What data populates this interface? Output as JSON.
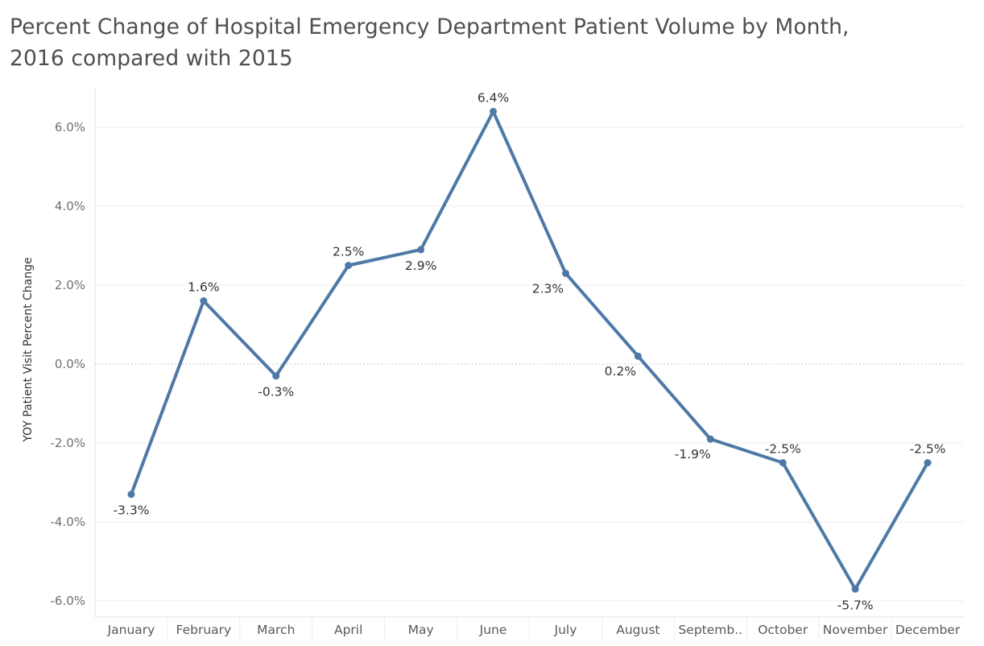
{
  "title_lines": [
    "Percent Change of Hospital Emergency Department Patient Volume by Month,",
    "2016 compared with 2015"
  ],
  "chart_data": {
    "type": "line",
    "title": "Percent Change of Hospital Emergency Department Patient Volume by Month, 2016 compared with 2015",
    "xlabel": "",
    "ylabel": "YOY Patient Visit Percent Change",
    "categories": [
      "January",
      "February",
      "March",
      "April",
      "May",
      "June",
      "July",
      "August",
      "Septemb..",
      "October",
      "November",
      "December"
    ],
    "series": [
      {
        "values": [
          -3.3,
          1.6,
          -0.3,
          2.5,
          2.9,
          6.4,
          2.3,
          0.2,
          -1.9,
          -2.5,
          -5.7,
          -2.5
        ],
        "labels": [
          "-3.3%",
          "1.6%",
          "-0.3%",
          "2.5%",
          "2.9%",
          "6.4%",
          "2.3%",
          "0.2%",
          "-1.9%",
          "-2.5%",
          "-5.7%",
          "-2.5%"
        ]
      }
    ],
    "label_placement": [
      "below",
      "above",
      "below",
      "above",
      "below",
      "above",
      "below-left",
      "below-left",
      "below-left",
      "above",
      "below",
      "above"
    ],
    "yticks": [
      6,
      4,
      2,
      0,
      -2,
      -4,
      -6
    ],
    "ytick_labels": [
      "6.0%",
      "4.0%",
      "2.0%",
      "0.0%",
      "-2.0%",
      "-4.0%",
      "-6.0%"
    ],
    "ylim": [
      -6.4,
      7.0
    ],
    "grid": true,
    "zero_line": "dotted",
    "legend": "none",
    "colors": {
      "line": "#4e79a7",
      "gridline": "#ececec",
      "zero_line": "#b5b5b5",
      "axis_text": "#6f6f6f",
      "label_text": "#333333",
      "title_text": "#4f4f4f"
    }
  }
}
